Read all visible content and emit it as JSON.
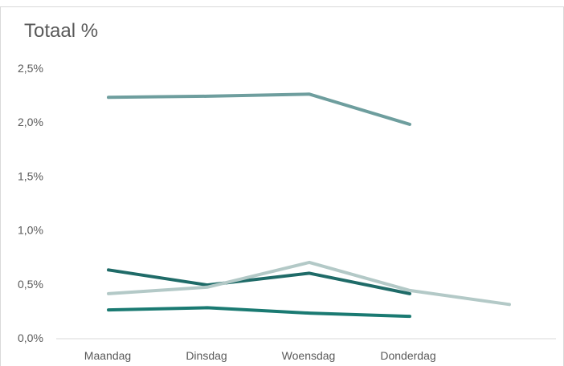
{
  "chart_data": {
    "type": "line",
    "title": "Totaal %",
    "xlabel": "",
    "ylabel": "",
    "categories": [
      "Maandag",
      "Dinsdag",
      "Woensdag",
      "Donderdag",
      ""
    ],
    "y_tick_labels": [
      "0,0%",
      "0,5%",
      "1,0%",
      "1,5%",
      "2,0%",
      "2,5%"
    ],
    "ylim": [
      0,
      2.5
    ],
    "grid": false,
    "legend": "none",
    "series": [
      {
        "color": "#6e9e9e",
        "values": [
          2.23,
          2.24,
          2.26,
          1.98,
          null
        ]
      },
      {
        "color": "#1f6b68",
        "values": [
          0.63,
          0.49,
          0.6,
          0.41,
          null
        ]
      },
      {
        "color": "#b3c9c7",
        "values": [
          0.41,
          0.47,
          0.7,
          0.44,
          0.31
        ]
      },
      {
        "color": "#1a7a72",
        "values": [
          0.26,
          0.28,
          0.23,
          0.2,
          null
        ]
      }
    ]
  }
}
